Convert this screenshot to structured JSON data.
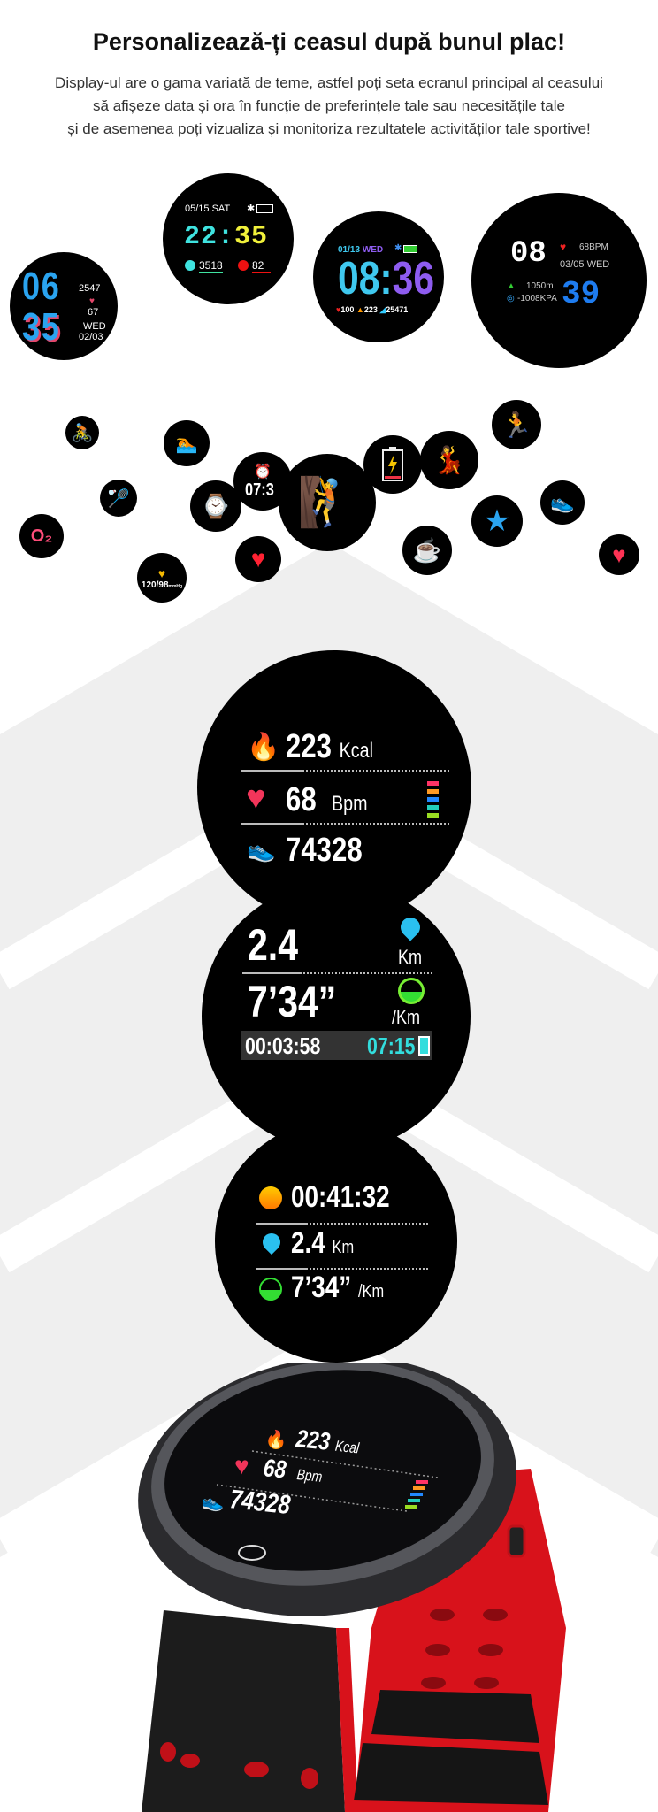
{
  "header": {
    "title": "Personalizează-ți ceasul după bunul plac!",
    "subtitle_lines": [
      "Display-ul are o gama variată de teme, astfel poți seta ecranul principal al ceasului",
      "să afișeze data și ora în funcție de preferințele tale sau necesitățile tale",
      "și de asemenea poți vizualiza și monitoriza rezultatele activităților tale sportive!"
    ]
  },
  "watch_faces": {
    "face1": {
      "hour": "06",
      "minute": "35",
      "steps": "2547",
      "heart": "67",
      "day": "WED",
      "date": "02/03"
    },
    "face2": {
      "date": "05/15 SAT",
      "hour": "22",
      "minute": "35",
      "steps": "3518",
      "heart": "82"
    },
    "face3": {
      "date": "01/13",
      "day": "WED",
      "hour": "08",
      "minute": "36",
      "heart": "100",
      "kcal": "223",
      "steps": "25471"
    },
    "face4": {
      "hour": "08",
      "heart": "68BPM",
      "date": "03/05 WED",
      "minute": "39",
      "altitude": "1050m",
      "pressure": "-1008KPA"
    }
  },
  "feature_icons": {
    "alarm_time": "07:3",
    "blood_pressure": "120/98",
    "blood_pressure_unit": "mmHg",
    "o2_label": "O₂"
  },
  "display1": {
    "kcal_value": "223",
    "kcal_unit": "Kcal",
    "bpm_value": "68",
    "bpm_unit": "Bpm",
    "steps_value": "74328",
    "zone_colors": [
      "#ff3366",
      "#ff9922",
      "#2288ff",
      "#22ccbb",
      "#99dd22"
    ]
  },
  "display2": {
    "distance_value": "2.4",
    "distance_unit": "Km",
    "pace_value": "7’34”",
    "pace_unit": "/Km",
    "elapsed": "00:03:58",
    "clock": "07:15"
  },
  "display3": {
    "duration": "00:41:32",
    "distance_value": "2.4",
    "distance_unit": "Km",
    "pace_value": "7’34”",
    "pace_unit": "/Km"
  },
  "product_watch": {
    "kcal_value": "223",
    "kcal_unit": "Kcal",
    "bpm_value": "68",
    "bpm_unit": "Bpm",
    "steps_value": "74328",
    "strap_color": "#e0121c"
  }
}
